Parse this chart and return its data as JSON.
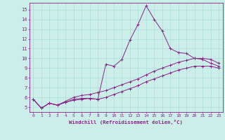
{
  "xlabel": "Windchill (Refroidissement éolien,°C)",
  "bg_color": "#cceee8",
  "grid_color": "#aadddd",
  "line_color": "#882288",
  "xlim": [
    -0.5,
    23.5
  ],
  "ylim": [
    4.5,
    15.7
  ],
  "xticks": [
    0,
    1,
    2,
    3,
    4,
    5,
    6,
    7,
    8,
    9,
    10,
    11,
    12,
    13,
    14,
    15,
    16,
    17,
    18,
    19,
    20,
    21,
    22,
    23
  ],
  "yticks": [
    5,
    6,
    7,
    8,
    9,
    10,
    11,
    12,
    13,
    14,
    15
  ],
  "line1_x": [
    0,
    1,
    2,
    3,
    4,
    5,
    6,
    7,
    8,
    9,
    10,
    11,
    12,
    13,
    14,
    15,
    16,
    17,
    18,
    19,
    20,
    21,
    22,
    23
  ],
  "line1_y": [
    5.8,
    4.9,
    5.4,
    5.2,
    5.5,
    5.8,
    5.9,
    5.9,
    5.8,
    9.4,
    9.2,
    9.9,
    11.9,
    13.5,
    15.4,
    14.0,
    12.8,
    11.0,
    10.6,
    10.5,
    10.0,
    9.9,
    9.5,
    9.2
  ],
  "line2_x": [
    0,
    1,
    2,
    3,
    4,
    5,
    6,
    7,
    8,
    9,
    10,
    11,
    12,
    13,
    14,
    15,
    16,
    17,
    18,
    19,
    20,
    21,
    22,
    23
  ],
  "line2_y": [
    5.8,
    4.9,
    5.4,
    5.2,
    5.6,
    6.0,
    6.2,
    6.3,
    6.5,
    6.7,
    7.0,
    7.3,
    7.6,
    7.9,
    8.3,
    8.7,
    9.0,
    9.3,
    9.6,
    9.8,
    10.0,
    10.0,
    9.9,
    9.5
  ],
  "line3_x": [
    0,
    1,
    2,
    3,
    4,
    5,
    6,
    7,
    8,
    9,
    10,
    11,
    12,
    13,
    14,
    15,
    16,
    17,
    18,
    19,
    20,
    21,
    22,
    23
  ],
  "line3_y": [
    5.8,
    4.9,
    5.4,
    5.2,
    5.5,
    5.7,
    5.8,
    5.9,
    5.8,
    6.0,
    6.3,
    6.6,
    6.9,
    7.2,
    7.6,
    7.9,
    8.2,
    8.5,
    8.8,
    9.0,
    9.2,
    9.2,
    9.2,
    9.0
  ]
}
